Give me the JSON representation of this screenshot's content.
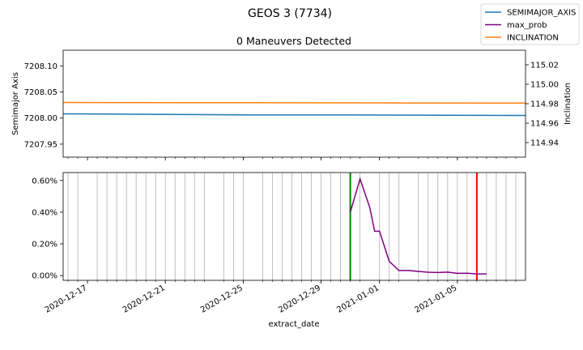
{
  "figure": {
    "title": "GEOS 3 (7734)"
  },
  "legend": {
    "placement": "top-right",
    "items": [
      {
        "label": "SEMIMAJOR_AXIS",
        "color": "#1f77b4"
      },
      {
        "label": "max_prob",
        "color": "#800080"
      },
      {
        "label": "INCLINATION",
        "color": "#ff7f0e"
      }
    ]
  },
  "chart_data": [
    {
      "type": "line",
      "title": "0 Maneuvers Detected",
      "xlabel": "",
      "ylabel": "Semimajor Axis",
      "y2label": "Inclination",
      "xlim": [
        "2020-12-15T18:00",
        "2021-01-08T12:00"
      ],
      "ylim": [
        7207.925,
        7208.13
      ],
      "y2lim": [
        114.925,
        115.035
      ],
      "yticks": [
        7207.95,
        7208.0,
        7208.05,
        7208.1
      ],
      "ytick_labels": [
        "7207.95",
        "7208.00",
        "7208.05",
        "7208.10"
      ],
      "y2ticks": [
        114.94,
        114.96,
        114.98,
        115.0,
        115.02
      ],
      "y2tick_labels": [
        "114.94",
        "114.96",
        "114.98",
        "115.00",
        "115.02"
      ],
      "series": [
        {
          "name": "SEMIMAJOR_AXIS",
          "axis": "left",
          "color": "#1f77b4",
          "x": [
            "2020-12-15T18:00",
            "2020-12-21T06:00",
            "2020-12-25T12:00",
            "2020-12-30T12:00",
            "2021-01-08T12:00"
          ],
          "y": [
            7208.008,
            7208.007,
            7208.006,
            7208.006,
            7208.005
          ]
        },
        {
          "name": "INCLINATION",
          "axis": "right",
          "color": "#ff7f0e",
          "x": [
            "2020-12-15T18:00",
            "2020-12-25T00:00",
            "2021-01-01T00:00",
            "2021-01-08T12:00"
          ],
          "y": [
            114.9812,
            114.981,
            114.9808,
            114.9806
          ]
        }
      ]
    },
    {
      "type": "line",
      "title": "",
      "xlabel": "extract_date",
      "ylabel": "",
      "xlim": [
        "2020-12-15T18:00",
        "2021-01-08T12:00"
      ],
      "ylim": [
        -0.0003,
        0.0065
      ],
      "yticks": [
        0,
        0.002,
        0.004,
        0.006
      ],
      "ytick_labels": [
        "0.00%",
        "0.20%",
        "0.40%",
        "0.60%"
      ],
      "xticks": [
        "2020-12-17",
        "2020-12-21",
        "2020-12-25",
        "2020-12-29",
        "2021-01-01",
        "2021-01-05"
      ],
      "xtick_labels": [
        "2020-12-17",
        "2020-12-21",
        "2020-12-25",
        "2020-12-29",
        "2021-01-01",
        "2021-01-05"
      ],
      "series": [
        {
          "name": "max_prob",
          "color": "#800080",
          "x": [
            "2020-12-30T12:00",
            "2020-12-31T00:00",
            "2020-12-31T12:00",
            "2020-12-31T18:00",
            "2021-01-01T00:00",
            "2021-01-01T12:00",
            "2021-01-02T00:00",
            "2021-01-02T12:00",
            "2021-01-03T00:00",
            "2021-01-03T12:00",
            "2021-01-04T00:00",
            "2021-01-04T12:00",
            "2021-01-05T00:00",
            "2021-01-05T12:00",
            "2021-01-06T00:00",
            "2021-01-06T12:00"
          ],
          "y": [
            0.004,
            0.0061,
            0.0043,
            0.0028,
            0.0028,
            0.0009,
            0.00032,
            0.00032,
            0.00026,
            0.00021,
            0.00019,
            0.00022,
            0.00014,
            0.00015,
            0.0001,
            0.0001
          ]
        }
      ],
      "vertical_lines": [
        {
          "x": "2020-12-30T12:00",
          "color": "#008000"
        },
        {
          "x": "2021-01-06T00:00",
          "color": "#ff0000"
        }
      ],
      "gridlines_x": [
        "2020-12-16T00:00",
        "2020-12-16T12:00",
        "2020-12-17T12:00",
        "2020-12-18T00:00",
        "2020-12-18T12:00",
        "2020-12-19T00:00",
        "2020-12-19T12:00",
        "2020-12-20T00:00",
        "2020-12-20T12:00",
        "2020-12-21T00:00",
        "2020-12-21T12:00",
        "2020-12-22T00:00",
        "2020-12-22T12:00",
        "2020-12-23T00:00",
        "2020-12-24T00:00",
        "2020-12-24T12:00",
        "2020-12-25T00:00",
        "2020-12-26T00:00",
        "2020-12-26T12:00",
        "2020-12-27T00:00",
        "2020-12-27T12:00",
        "2020-12-28T00:00",
        "2020-12-28T12:00",
        "2020-12-29T00:00",
        "2020-12-29T12:00",
        "2020-12-30T00:00",
        "2020-12-30T12:00",
        "2020-12-31T00:00",
        "2021-01-01T00:00",
        "2021-01-01T12:00",
        "2021-01-02T00:00",
        "2021-01-03T00:00",
        "2021-01-03T12:00",
        "2021-01-04T00:00",
        "2021-01-04T12:00",
        "2021-01-05T00:00",
        "2021-01-05T12:00",
        "2021-01-06T00:00",
        "2021-01-06T12:00",
        "2021-01-07T00:00",
        "2021-01-07T12:00",
        "2021-01-08T00:00"
      ]
    }
  ]
}
